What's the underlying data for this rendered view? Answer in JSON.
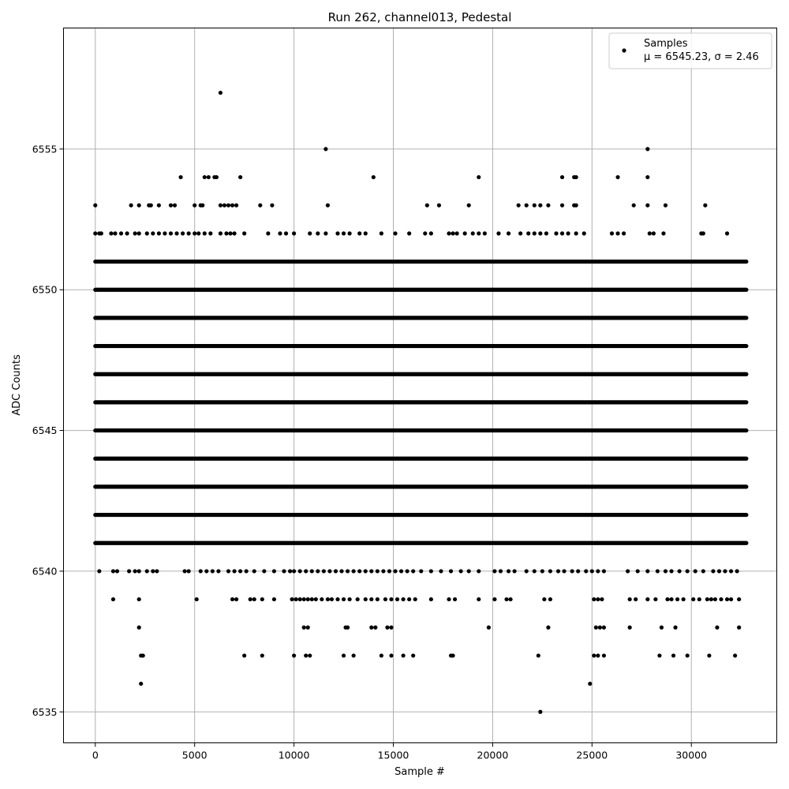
{
  "chart_data": {
    "type": "scatter",
    "title": "Run 262, channel013, Pedestal",
    "xlabel": "Sample #",
    "ylabel": "ADC Counts",
    "xlim": [
      -1600,
      34300
    ],
    "ylim": [
      6533.9,
      6559.3
    ],
    "x_ticks": [
      0,
      5000,
      10000,
      15000,
      20000,
      25000,
      30000
    ],
    "y_ticks": [
      6535,
      6540,
      6545,
      6550,
      6555
    ],
    "x_tick_labels": [
      "0",
      "5000",
      "10000",
      "15000",
      "20000",
      "25000",
      "30000"
    ],
    "y_tick_labels": [
      "6535",
      "6540",
      "6545",
      "6550",
      "6555"
    ],
    "grid": true,
    "legend_position": "top-right",
    "marker_color": "#000000",
    "legend": {
      "series_name": "Samples",
      "stats_text": "μ = 6545.23, σ = 2.46"
    },
    "series": [
      {
        "name": "Samples",
        "n_samples": 32768,
        "dense_levels": [
          6541,
          6542,
          6543,
          6544,
          6545,
          6546,
          6547,
          6548,
          6549,
          6550,
          6551
        ],
        "sparse_levels": [
          {
            "y": 6540,
            "x": [
              200,
              900,
              1100,
              1700,
              2000,
              2200,
              2600,
              2900,
              3100,
              4500,
              4700,
              5300,
              5600,
              5900,
              6200,
              6700,
              7000,
              7300,
              7600,
              8000,
              8500,
              9000,
              9500,
              9800,
              10000,
              10300,
              10600,
              10900,
              11200,
              11500,
              11800,
              12100,
              12400,
              12700,
              13000,
              13300,
              13600,
              13900,
              14200,
              14500,
              14800,
              15100,
              15400,
              15700,
              16000,
              16400,
              16900,
              17400,
              17900,
              18400,
              18800,
              19300,
              20100,
              20400,
              20800,
              21100,
              21700,
              22100,
              22500,
              22900,
              23300,
              23600,
              24000,
              24300,
              24700,
              25000,
              25300,
              25600,
              26800,
              27300,
              27800,
              28300,
              28700,
              29000,
              29400,
              29800,
              30200,
              30600,
              31100,
              31400,
              31700,
              32000,
              32300
            ]
          },
          {
            "y": 6539,
            "x": [
              900,
              2200,
              5100,
              6900,
              7100,
              7800,
              8000,
              8400,
              9000,
              9900,
              10100,
              10300,
              10500,
              10700,
              10900,
              11100,
              11400,
              11700,
              11900,
              12200,
              12500,
              12800,
              13200,
              13600,
              13900,
              14200,
              14600,
              14900,
              15200,
              15500,
              15800,
              16100,
              16900,
              17800,
              18100,
              19300,
              20100,
              20700,
              20900,
              22600,
              22900,
              25100,
              25300,
              25500,
              26900,
              27200,
              27800,
              28200,
              28800,
              29000,
              29300,
              29600,
              30100,
              30400,
              30800,
              31000,
              31200,
              31500,
              31800,
              32000,
              32400
            ]
          },
          {
            "y": 6538,
            "x": [
              2200,
              10500,
              10700,
              12600,
              12700,
              13900,
              14100,
              14700,
              14900,
              19800,
              22800,
              25200,
              25400,
              25600,
              26900,
              28500,
              29200,
              31300,
              32400
            ]
          },
          {
            "y": 6537,
            "x": [
              2300,
              2400,
              7500,
              8400,
              10000,
              10600,
              10800,
              12500,
              13000,
              14400,
              14900,
              15500,
              16000,
              17900,
              18000,
              22300,
              25100,
              25300,
              25600,
              28400,
              29100,
              29800,
              30900,
              32200
            ]
          },
          {
            "y": 6536,
            "x": [
              2300,
              24900
            ]
          },
          {
            "y": 6535,
            "x": [
              22400
            ]
          },
          {
            "y": 6552,
            "x": [
              0,
              200,
              300,
              800,
              1000,
              1300,
              1600,
              2000,
              2200,
              2600,
              2900,
              3200,
              3500,
              3800,
              4100,
              4400,
              4700,
              5000,
              5200,
              5500,
              5800,
              6300,
              6600,
              6800,
              7000,
              7500,
              8700,
              9300,
              9600,
              10000,
              10800,
              11200,
              11600,
              12200,
              12500,
              12800,
              13300,
              13600,
              14400,
              15100,
              15800,
              16600,
              16900,
              17800,
              18000,
              18200,
              18600,
              19000,
              19300,
              19600,
              20300,
              20800,
              21400,
              21800,
              22100,
              22400,
              22700,
              23200,
              23500,
              23800,
              24200,
              24600,
              26000,
              26300,
              26600,
              27900,
              28100,
              28600,
              30500,
              30600,
              31800
            ]
          },
          {
            "y": 6553,
            "x": [
              0,
              1800,
              2200,
              2700,
              2800,
              3200,
              3800,
              4000,
              5000,
              5300,
              5400,
              6300,
              6500,
              6700,
              6900,
              7100,
              8300,
              8900,
              11700,
              16700,
              17300,
              18800,
              21300,
              21700,
              22100,
              22400,
              22800,
              23500,
              24100,
              24200,
              27100,
              27800,
              28700,
              30700
            ]
          },
          {
            "y": 6554,
            "x": [
              4300,
              5500,
              5700,
              6000,
              6100,
              7300,
              14000,
              19300,
              23500,
              24100,
              24200,
              26300,
              27800
            ]
          },
          {
            "y": 6555,
            "x": [
              11600,
              27800
            ]
          },
          {
            "y": 6557,
            "x": [
              6300
            ]
          }
        ]
      }
    ]
  }
}
